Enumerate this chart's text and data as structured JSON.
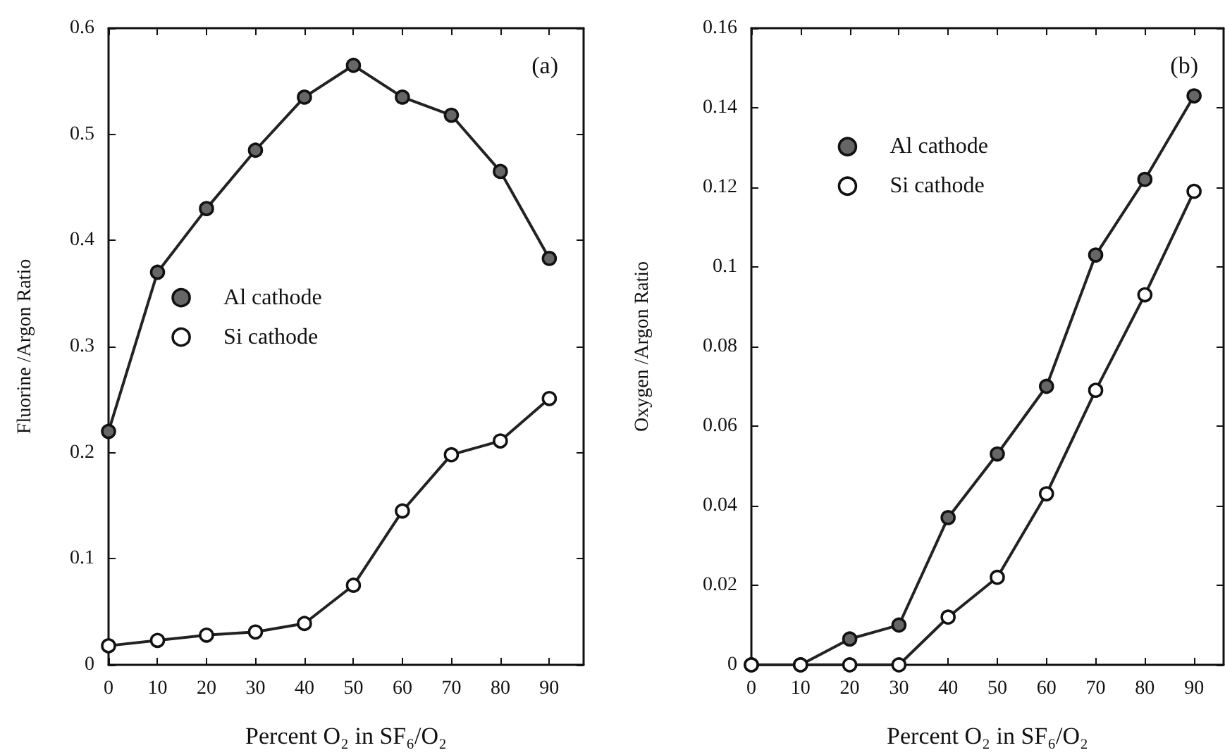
{
  "chart_data": [
    {
      "type": "line",
      "xlabel": "Percent O₂ in SF₆/O₂",
      "ylabel": "Fluorine /Argon Ratio",
      "annotations": [
        "(a)"
      ],
      "x": [
        0,
        10,
        20,
        30,
        40,
        50,
        60,
        70,
        80,
        90
      ],
      "series": [
        {
          "name": "Al cathode",
          "color": "#666666",
          "values": [
            0.22,
            0.37,
            0.43,
            0.485,
            0.535,
            0.565,
            0.535,
            0.518,
            0.465,
            0.383
          ]
        },
        {
          "name": "Si cathode",
          "color": "#ffffff",
          "values": [
            0.018,
            0.023,
            0.028,
            0.031,
            0.039,
            0.075,
            0.145,
            0.198,
            0.211,
            0.251
          ]
        }
      ],
      "xlim": [
        0,
        97
      ],
      "xticks": [
        0,
        10,
        20,
        30,
        40,
        50,
        60,
        70,
        80,
        90
      ],
      "ylim": [
        0,
        0.6
      ],
      "yticks": [
        0,
        0.1,
        0.2,
        0.3,
        0.4,
        0.5,
        0.6
      ],
      "grid": false,
      "legend": "center",
      "marker": "circle",
      "line_style": "solid"
    },
    {
      "type": "line",
      "xlabel": "Percent O₂ in SF₆/O₂",
      "ylabel": "Oxygen /Argon Ratio",
      "annotations": [
        "(b)"
      ],
      "x": [
        0,
        10,
        20,
        30,
        40,
        50,
        60,
        70,
        80,
        90
      ],
      "series": [
        {
          "name": "Al cathode",
          "color": "#666666",
          "values": [
            0,
            0,
            0.0065,
            0.01,
            0.037,
            0.053,
            0.07,
            0.103,
            0.122,
            0.143
          ]
        },
        {
          "name": "Si cathode",
          "color": "#ffffff",
          "values": [
            0,
            0,
            0,
            0,
            0.012,
            0.022,
            0.043,
            0.069,
            0.093,
            0.119
          ]
        }
      ],
      "xlim": [
        0,
        96
      ],
      "xticks": [
        0,
        10,
        20,
        30,
        40,
        50,
        60,
        70,
        80,
        90
      ],
      "ylim": [
        0,
        0.16
      ],
      "yticks": [
        0,
        0.02,
        0.04,
        0.06,
        0.08,
        0.1,
        0.12,
        0.14,
        0.16
      ],
      "grid": false,
      "legend": "top left",
      "marker": "circle",
      "line_style": "solid"
    }
  ]
}
